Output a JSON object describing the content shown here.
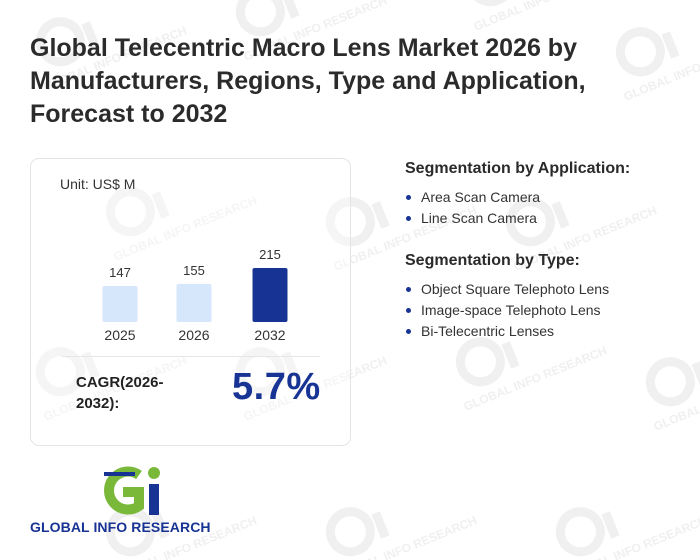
{
  "title": "Global Telecentric Macro Lens Market 2026 by Manufacturers, Regions, Type and Application, Forecast to 2032",
  "unit": "Unit: US$ M",
  "chart_data": {
    "type": "bar",
    "categories": [
      "2025",
      "2026",
      "2032"
    ],
    "values": [
      147,
      155,
      215
    ],
    "data_labels": [
      "147",
      "155",
      "215"
    ],
    "title": "",
    "xlabel": "",
    "ylabel": "",
    "ylim": [
      0,
      215
    ],
    "grid": false,
    "legend": "none"
  },
  "colors": {
    "bar_light": "#d6e7fb",
    "bar_highlight": "#173393",
    "accent": "#173393",
    "logo_green": "#7ab83a"
  },
  "cagr": {
    "label": "CAGR(2026-2032):",
    "value": "5.7%"
  },
  "segments": [
    {
      "heading": "Segmentation by Application:",
      "items": [
        "Area Scan Camera",
        "Line Scan Camera"
      ]
    },
    {
      "heading": "Segmentation by Type:",
      "items": [
        "Object Square Telephoto Lens",
        "Image-space Telephoto Lens",
        "Bi-Telecentric Lenses"
      ]
    }
  ],
  "logo": {
    "text": "GLOBAL INFO RESEARCH",
    "watermark_text": "GLOBAL INFO RESEARCH"
  }
}
